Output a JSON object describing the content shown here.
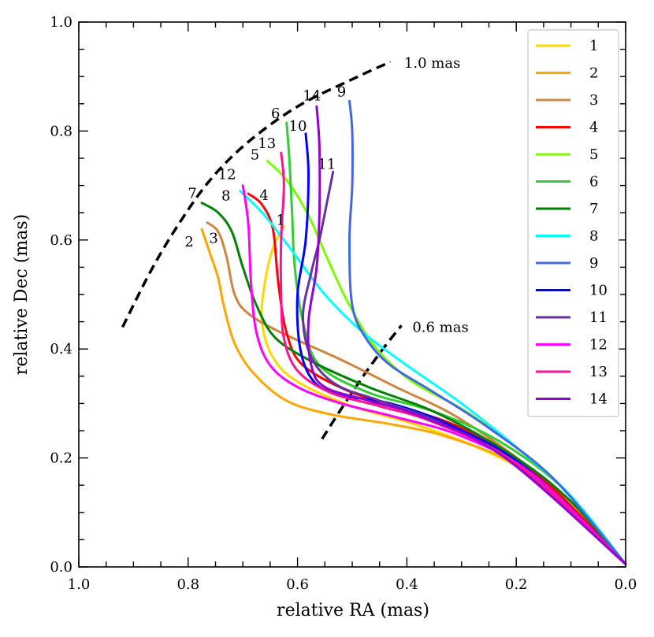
{
  "chart_data": {
    "type": "line",
    "title": "",
    "xlabel": "relative RA (mas)",
    "ylabel": "relative Dec (mas)",
    "xlim": [
      1.0,
      0.0
    ],
    "ylim": [
      0.0,
      1.0
    ],
    "x_inverted": true,
    "grid": false,
    "legend_position": "top-right",
    "x_ticks": [
      "1.0",
      "0.8",
      "0.6",
      "0.4",
      "0.2",
      "0.0"
    ],
    "y_ticks": [
      "0.0",
      "0.2",
      "0.4",
      "0.6",
      "0.8",
      "1.0"
    ],
    "circles": [
      {
        "label": "1.0 mas",
        "style": "dashed",
        "color": "#000000",
        "points": [
          [
            0.92,
            0.44
          ],
          [
            0.87,
            0.54
          ],
          [
            0.82,
            0.625
          ],
          [
            0.76,
            0.71
          ],
          [
            0.69,
            0.78
          ],
          [
            0.6,
            0.845
          ],
          [
            0.5,
            0.895
          ],
          [
            0.43,
            0.927
          ]
        ]
      },
      {
        "label": "0.6 mas",
        "style": "dashed",
        "color": "#000000",
        "points": [
          [
            0.555,
            0.235
          ],
          [
            0.52,
            0.29
          ],
          [
            0.48,
            0.35
          ],
          [
            0.44,
            0.405
          ],
          [
            0.41,
            0.443
          ]
        ]
      }
    ],
    "series": [
      {
        "name": "1",
        "label": "1",
        "color": "#FFD700",
        "points": [
          [
            0.625,
            0.625
          ],
          [
            0.645,
            0.585
          ],
          [
            0.66,
            0.52
          ],
          [
            0.665,
            0.45
          ],
          [
            0.645,
            0.385
          ],
          [
            0.6,
            0.34
          ],
          [
            0.5,
            0.295
          ],
          [
            0.38,
            0.26
          ],
          [
            0.25,
            0.21
          ],
          [
            0.13,
            0.14
          ],
          [
            0.0,
            0.005
          ]
        ]
      },
      {
        "name": "2",
        "label": "2",
        "color": "#FFA500",
        "points": [
          [
            0.775,
            0.62
          ],
          [
            0.76,
            0.575
          ],
          [
            0.745,
            0.53
          ],
          [
            0.735,
            0.48
          ],
          [
            0.715,
            0.41
          ],
          [
            0.68,
            0.355
          ],
          [
            0.62,
            0.305
          ],
          [
            0.54,
            0.28
          ],
          [
            0.43,
            0.262
          ],
          [
            0.33,
            0.24
          ],
          [
            0.2,
            0.19
          ],
          [
            0.1,
            0.12
          ],
          [
            0.0,
            0.005
          ]
        ]
      },
      {
        "name": "3",
        "label": "3",
        "color": "#CD853F",
        "points": [
          [
            0.765,
            0.632
          ],
          [
            0.745,
            0.615
          ],
          [
            0.73,
            0.57
          ],
          [
            0.715,
            0.5
          ],
          [
            0.69,
            0.465
          ],
          [
            0.63,
            0.43
          ],
          [
            0.52,
            0.38
          ],
          [
            0.42,
            0.33
          ],
          [
            0.3,
            0.27
          ],
          [
            0.15,
            0.16
          ],
          [
            0.0,
            0.005
          ]
        ]
      },
      {
        "name": "4",
        "label": "4",
        "color": "#FF0000",
        "points": [
          [
            0.69,
            0.685
          ],
          [
            0.665,
            0.665
          ],
          [
            0.645,
            0.62
          ],
          [
            0.635,
            0.52
          ],
          [
            0.62,
            0.43
          ],
          [
            0.59,
            0.37
          ],
          [
            0.5,
            0.32
          ],
          [
            0.4,
            0.29
          ],
          [
            0.29,
            0.25
          ],
          [
            0.15,
            0.16
          ],
          [
            0.0,
            0.005
          ]
        ]
      },
      {
        "name": "5",
        "label": "5",
        "color": "#7CFC00",
        "points": [
          [
            0.655,
            0.745
          ],
          [
            0.62,
            0.71
          ],
          [
            0.58,
            0.645
          ],
          [
            0.545,
            0.565
          ],
          [
            0.505,
            0.48
          ],
          [
            0.455,
            0.4
          ],
          [
            0.39,
            0.34
          ],
          [
            0.3,
            0.29
          ],
          [
            0.2,
            0.22
          ],
          [
            0.1,
            0.13
          ],
          [
            0.0,
            0.005
          ]
        ]
      },
      {
        "name": "6",
        "label": "6",
        "color": "#32CD32",
        "points": [
          [
            0.62,
            0.815
          ],
          [
            0.615,
            0.75
          ],
          [
            0.61,
            0.65
          ],
          [
            0.605,
            0.55
          ],
          [
            0.59,
            0.45
          ],
          [
            0.56,
            0.37
          ],
          [
            0.47,
            0.32
          ],
          [
            0.35,
            0.285
          ],
          [
            0.23,
            0.23
          ],
          [
            0.11,
            0.14
          ],
          [
            0.0,
            0.005
          ]
        ]
      },
      {
        "name": "7",
        "label": "7",
        "color": "#008000",
        "points": [
          [
            0.775,
            0.668
          ],
          [
            0.745,
            0.65
          ],
          [
            0.72,
            0.615
          ],
          [
            0.7,
            0.55
          ],
          [
            0.675,
            0.48
          ],
          [
            0.64,
            0.42
          ],
          [
            0.57,
            0.375
          ],
          [
            0.47,
            0.33
          ],
          [
            0.34,
            0.28
          ],
          [
            0.2,
            0.2
          ],
          [
            0.1,
            0.12
          ],
          [
            0.0,
            0.005
          ]
        ]
      },
      {
        "name": "8",
        "label": "8",
        "color": "#00FFFF",
        "points": [
          [
            0.705,
            0.69
          ],
          [
            0.66,
            0.645
          ],
          [
            0.61,
            0.58
          ],
          [
            0.55,
            0.5
          ],
          [
            0.48,
            0.43
          ],
          [
            0.4,
            0.37
          ],
          [
            0.3,
            0.3
          ],
          [
            0.2,
            0.22
          ],
          [
            0.1,
            0.13
          ],
          [
            0.0,
            0.005
          ]
        ]
      },
      {
        "name": "9",
        "label": "9",
        "color": "#4169E1",
        "points": [
          [
            0.505,
            0.855
          ],
          [
            0.5,
            0.8
          ],
          [
            0.5,
            0.7
          ],
          [
            0.505,
            0.6
          ],
          [
            0.5,
            0.48
          ],
          [
            0.475,
            0.42
          ],
          [
            0.43,
            0.37
          ],
          [
            0.35,
            0.32
          ],
          [
            0.25,
            0.255
          ],
          [
            0.13,
            0.16
          ],
          [
            0.0,
            0.005
          ]
        ]
      },
      {
        "name": "10",
        "label": "10",
        "color": "#0000FF",
        "points": [
          [
            0.585,
            0.795
          ],
          [
            0.58,
            0.72
          ],
          [
            0.585,
            0.6
          ],
          [
            0.6,
            0.5
          ],
          [
            0.595,
            0.4
          ],
          [
            0.57,
            0.34
          ],
          [
            0.52,
            0.315
          ],
          [
            0.43,
            0.3
          ],
          [
            0.32,
            0.26
          ],
          [
            0.18,
            0.18
          ],
          [
            0.0,
            0.005
          ]
        ]
      },
      {
        "name": "11",
        "label": "11",
        "color": "#663399",
        "points": [
          [
            0.535,
            0.725
          ],
          [
            0.545,
            0.675
          ],
          [
            0.56,
            0.6
          ],
          [
            0.575,
            0.54
          ],
          [
            0.59,
            0.46
          ],
          [
            0.575,
            0.385
          ],
          [
            0.53,
            0.335
          ],
          [
            0.45,
            0.305
          ],
          [
            0.34,
            0.265
          ],
          [
            0.19,
            0.18
          ],
          [
            0.0,
            0.005
          ]
        ]
      },
      {
        "name": "12",
        "label": "12",
        "color": "#FF00FF",
        "points": [
          [
            0.7,
            0.7
          ],
          [
            0.69,
            0.63
          ],
          [
            0.685,
            0.52
          ],
          [
            0.675,
            0.43
          ],
          [
            0.65,
            0.37
          ],
          [
            0.6,
            0.33
          ],
          [
            0.52,
            0.3
          ],
          [
            0.42,
            0.275
          ],
          [
            0.3,
            0.24
          ],
          [
            0.17,
            0.17
          ],
          [
            0.0,
            0.005
          ]
        ]
      },
      {
        "name": "13",
        "label": "13",
        "color": "#FF1493",
        "points": [
          [
            0.63,
            0.76
          ],
          [
            0.625,
            0.7
          ],
          [
            0.63,
            0.6
          ],
          [
            0.63,
            0.5
          ],
          [
            0.625,
            0.42
          ],
          [
            0.6,
            0.36
          ],
          [
            0.54,
            0.32
          ],
          [
            0.45,
            0.295
          ],
          [
            0.35,
            0.265
          ],
          [
            0.2,
            0.19
          ],
          [
            0.0,
            0.005
          ]
        ]
      },
      {
        "name": "14",
        "label": "14",
        "color": "#9400D3",
        "points": [
          [
            0.565,
            0.845
          ],
          [
            0.56,
            0.77
          ],
          [
            0.56,
            0.65
          ],
          [
            0.565,
            0.55
          ],
          [
            0.58,
            0.45
          ],
          [
            0.575,
            0.37
          ],
          [
            0.55,
            0.33
          ],
          [
            0.47,
            0.305
          ],
          [
            0.37,
            0.275
          ],
          [
            0.22,
            0.2
          ],
          [
            0.0,
            0.005
          ]
        ]
      }
    ]
  }
}
